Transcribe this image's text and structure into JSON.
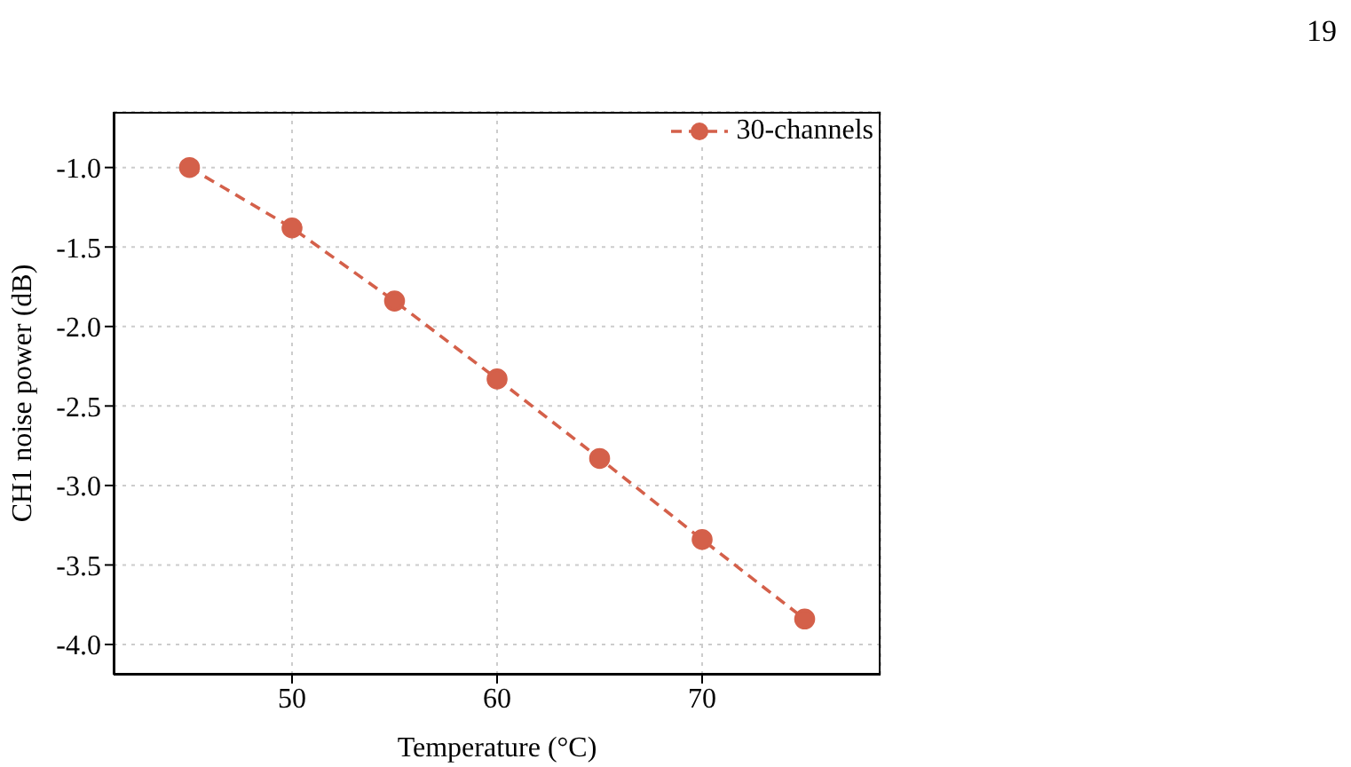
{
  "chart_data": {
    "type": "line",
    "xlabel": "Temperature (°C)",
    "ylabel": "CH1 noise power (dB)",
    "x": [
      45,
      50,
      55,
      60,
      65,
      70,
      75
    ],
    "series": [
      {
        "name": "30-channels",
        "color": "#d4604a",
        "values": [
          -1.0,
          -1.38,
          -1.84,
          -2.33,
          -2.83,
          -3.34,
          -3.84
        ]
      }
    ],
    "xlim": [
      41.3,
      78.7
    ],
    "xticks": [
      50,
      60,
      70
    ],
    "ylim": [
      -4.19,
      -0.65
    ],
    "yticks": [
      {
        "value": -4,
        "label": "-4.0"
      },
      -3.5,
      {
        "value": -3,
        "label": "-3.0"
      },
      -2.5,
      {
        "value": -2,
        "label": "-2.0"
      },
      -1.5,
      {
        "value": -1,
        "label": "-1.0"
      }
    ],
    "grid": true,
    "legend": "top right",
    "marker": "circle",
    "line_style": "dashed",
    "annotations": [
      "19"
    ]
  }
}
